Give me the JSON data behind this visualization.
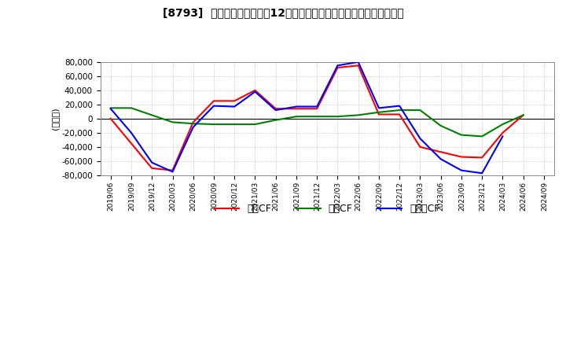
{
  "title": "[8793]  キャッシュフローの12か月移動合計の対前年同期増減額の推移",
  "ylabel": "(百万円)",
  "ylim": [
    -80000,
    80000
  ],
  "yticks": [
    -80000,
    -60000,
    -40000,
    -20000,
    0,
    20000,
    40000,
    60000,
    80000
  ],
  "legend_labels": [
    "営業CF",
    "投資CF",
    "フリーCF"
  ],
  "line_colors": [
    "#ff0000",
    "#008000",
    "#0000ff"
  ],
  "x_labels": [
    "2019/06",
    "2019/09",
    "2019/12",
    "2020/03",
    "2020/06",
    "2020/09",
    "2020/12",
    "2021/03",
    "2021/06",
    "2021/09",
    "2021/12",
    "2022/03",
    "2022/06",
    "2022/09",
    "2022/12",
    "2023/03",
    "2023/06",
    "2023/09",
    "2023/12",
    "2024/03",
    "2024/06",
    "2024/09"
  ],
  "operating_cf": [
    0,
    -35000,
    -70000,
    -73000,
    -5000,
    25000,
    25000,
    40000,
    14000,
    14000,
    14000,
    72000,
    75000,
    6000,
    6000,
    -40000,
    -47000,
    -54000,
    -55000,
    -20000,
    5000,
    null
  ],
  "investing_cf": [
    15000,
    15000,
    5000,
    -5000,
    -7000,
    -8000,
    -8000,
    -8000,
    -2000,
    3000,
    3000,
    3000,
    5000,
    9000,
    12000,
    12000,
    -10000,
    -23000,
    -25000,
    -8000,
    5000,
    null
  ],
  "free_cf": [
    14000,
    -20000,
    -62000,
    -75000,
    -12000,
    18000,
    17000,
    38000,
    12000,
    17000,
    17000,
    75000,
    80000,
    15000,
    18000,
    -28000,
    -57000,
    -73000,
    -77000,
    -25000,
    null,
    null
  ],
  "background_color": "#ffffff",
  "grid_color": "#aaaaaa",
  "grid_style": ":"
}
